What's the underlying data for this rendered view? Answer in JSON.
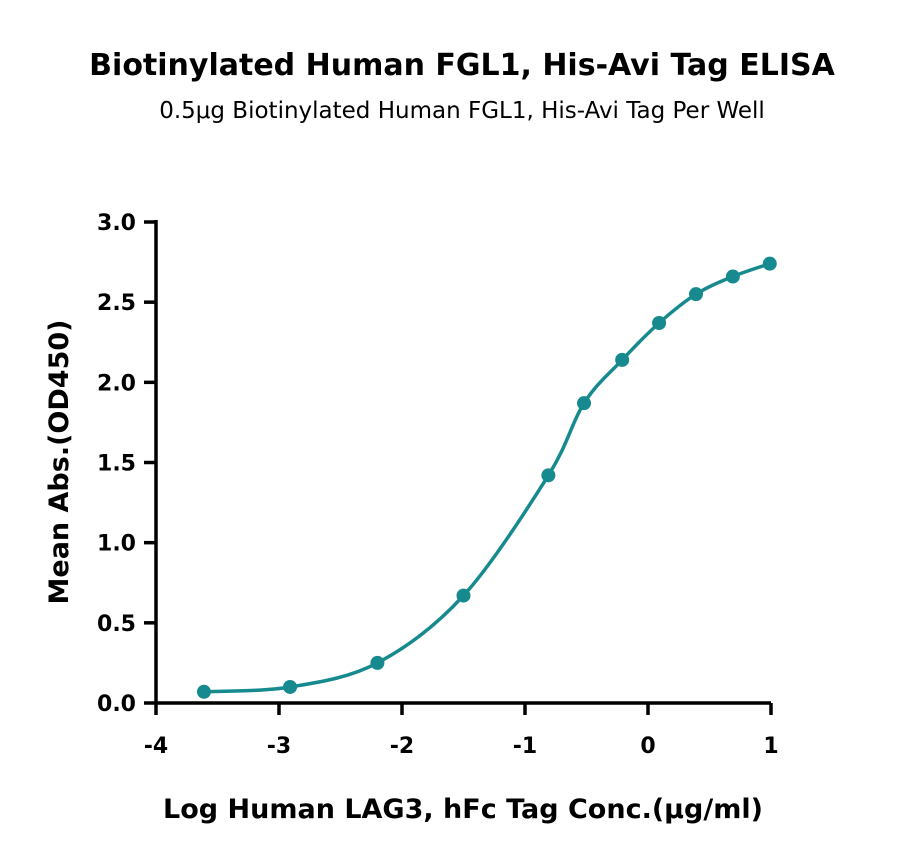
{
  "chart_data": {
    "type": "scatter",
    "title": "Biotinylated Human FGL1, His-Avi Tag ELISA",
    "subtitle": "0.5μg Biotinylated Human FGL1, His-Avi Tag Per Well",
    "xlabel": "Log Human LAG3, hFc Tag Conc.(μg/ml)",
    "ylabel": "Mean Abs.(OD450)",
    "xlim": [
      -4,
      1
    ],
    "ylim": [
      0,
      3
    ],
    "xticks": [
      -4,
      -3,
      -2,
      -1,
      0,
      1
    ],
    "xtick_labels": [
      "-4",
      "-3",
      "-2",
      "-1",
      "0",
      "1"
    ],
    "yticks": [
      0,
      0.5,
      1,
      1.5,
      2,
      2.5,
      3
    ],
    "ytick_labels": [
      "0.0",
      "0.5",
      "1.0",
      "1.5",
      "2.0",
      "2.5",
      "3.0"
    ],
    "grid": false,
    "fit": "four-parameter logistic",
    "series": [
      {
        "color": "#168a8e",
        "x": [
          -3.61,
          -2.91,
          -2.2,
          -1.5,
          -0.81,
          -0.52,
          -0.21,
          0.09,
          0.39,
          0.69,
          0.99
        ],
        "y": [
          0.07,
          0.1,
          0.25,
          0.67,
          1.42,
          1.87,
          2.14,
          2.37,
          2.55,
          2.66,
          2.74
        ]
      }
    ]
  }
}
